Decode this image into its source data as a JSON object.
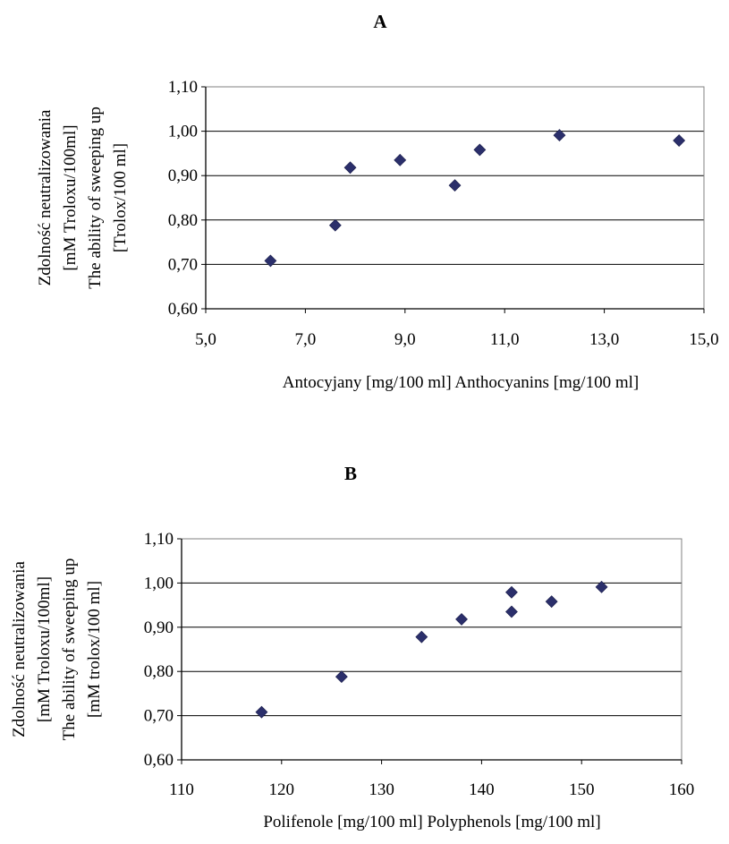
{
  "chart_data": [
    {
      "type": "scatter",
      "title": "A",
      "xlabel": "Antocyjany [mg/100 ml] Anthocyanins [mg/100 ml]",
      "ylabel": [
        "Zdolność neutralizowania",
        "[mM Troloxu/100ml]",
        "The ability of sweeping up",
        "[Trolox/100 ml]"
      ],
      "xlim": [
        5.0,
        15.0
      ],
      "ylim": [
        0.6,
        1.1
      ],
      "xticks": [
        "5,0",
        "7,0",
        "9,0",
        "11,0",
        "13,0",
        "15,0"
      ],
      "yticks": [
        "0,60",
        "0,70",
        "0,80",
        "0,90",
        "1,00",
        "1,10"
      ],
      "grid": "horizontal",
      "marker_color": "#2B2F6B",
      "points": [
        {
          "x": 6.3,
          "y": 0.708
        },
        {
          "x": 7.6,
          "y": 0.788
        },
        {
          "x": 7.9,
          "y": 0.918
        },
        {
          "x": 8.9,
          "y": 0.935
        },
        {
          "x": 10.0,
          "y": 0.878
        },
        {
          "x": 10.5,
          "y": 0.958
        },
        {
          "x": 12.1,
          "y": 0.991
        },
        {
          "x": 14.5,
          "y": 0.979
        }
      ]
    },
    {
      "type": "scatter",
      "title": "B",
      "xlabel": "Polifenole [mg/100 ml] Polyphenols [mg/100 ml]",
      "ylabel": [
        "Zdolność neutralizowania",
        "[mM Troloxu/100ml]",
        "The ability of sweeping up",
        "[mM trolox/100 ml]"
      ],
      "xlim": [
        110,
        160
      ],
      "ylim": [
        0.6,
        1.1
      ],
      "xticks": [
        "110",
        "120",
        "130",
        "140",
        "150",
        "160"
      ],
      "yticks": [
        "0,60",
        "0,70",
        "0,80",
        "0,90",
        "1,00",
        "1,10"
      ],
      "grid": "horizontal",
      "marker_color": "#2B2F6B",
      "points": [
        {
          "x": 118,
          "y": 0.708
        },
        {
          "x": 126,
          "y": 0.788
        },
        {
          "x": 134,
          "y": 0.878
        },
        {
          "x": 138,
          "y": 0.918
        },
        {
          "x": 143,
          "y": 0.979
        },
        {
          "x": 143,
          "y": 0.935
        },
        {
          "x": 147,
          "y": 0.958
        },
        {
          "x": 152,
          "y": 0.991
        }
      ]
    }
  ]
}
